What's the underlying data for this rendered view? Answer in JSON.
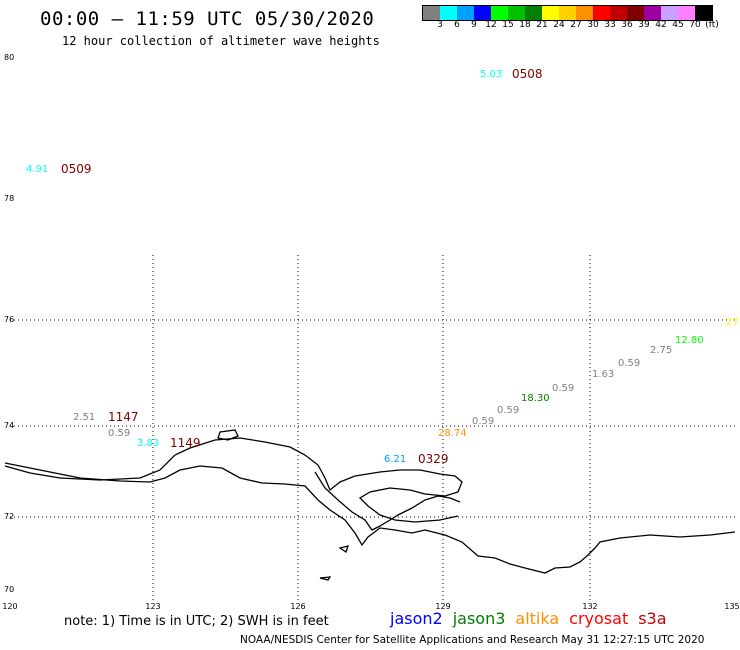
{
  "header": {
    "title": "00:00 – 11:59 UTC 05/30/2020",
    "subtitle": "12 hour collection of altimeter wave heights"
  },
  "colorbar": {
    "colors": [
      "#808080",
      "#00ffff",
      "#00a0ff",
      "#0000ff",
      "#00ff00",
      "#00c000",
      "#008000",
      "#ffff00",
      "#ffd000",
      "#ff9000",
      "#ff0000",
      "#c00000",
      "#800000",
      "#a000a0",
      "#c8a0ff",
      "#ff80ff",
      "#000000"
    ],
    "labels": [
      "3",
      "6",
      "9",
      "12",
      "15",
      "18",
      "21",
      "24",
      "27",
      "30",
      "33",
      "36",
      "39",
      "42",
      "45",
      "70",
      "(ft)"
    ]
  },
  "axes": {
    "lat_labels": [
      "80",
      "78",
      "76",
      "74",
      "72",
      "70"
    ],
    "lon_labels": [
      "120",
      "123",
      "126",
      "129",
      "132",
      "135"
    ]
  },
  "observations": [
    {
      "text": "5.03",
      "color": "#00ffff"
    },
    {
      "text": "0508",
      "color": "#800000"
    },
    {
      "text": "4.91",
      "color": "#00ffff"
    },
    {
      "text": "0509",
      "color": "#800000"
    },
    {
      "text": "2.51",
      "color": "#808080"
    },
    {
      "text": "1147",
      "color": "#800000"
    },
    {
      "text": "0.59",
      "color": "#808080"
    },
    {
      "text": "3.83",
      "color": "#00ffff"
    },
    {
      "text": "1149",
      "color": "#800000"
    },
    {
      "text": "6.21",
      "color": "#00a0ff"
    },
    {
      "text": "0329",
      "color": "#800000"
    },
    {
      "text": "28.74",
      "color": "#ff9000"
    },
    {
      "text": "0.59",
      "color": "#808080"
    },
    {
      "text": "0.59",
      "color": "#808080"
    },
    {
      "text": "18.30",
      "color": "#008000"
    },
    {
      "text": "0.59",
      "color": "#808080"
    },
    {
      "text": "1.63",
      "color": "#808080"
    },
    {
      "text": "0.59",
      "color": "#808080"
    },
    {
      "text": "2.75",
      "color": "#808080"
    },
    {
      "text": "12.80",
      "color": "#00ff00"
    },
    {
      "text": "27",
      "color": "#ffff00"
    }
  ],
  "footer": {
    "note": "note: 1) Time is in UTC; 2) SWH is in feet",
    "legend": [
      {
        "name": "jason2",
        "color": "#0000ff"
      },
      {
        "name": "jason3",
        "color": "#008000"
      },
      {
        "name": "altika",
        "color": "#ff9000"
      },
      {
        "name": "cryosat",
        "color": "#ff0000"
      },
      {
        "name": "s3a",
        "color": "#c00000"
      }
    ],
    "credit": "NOAA/NESDIS Center for Satellite Applications and Research    May 31 12:27:15 UTC 2020"
  }
}
